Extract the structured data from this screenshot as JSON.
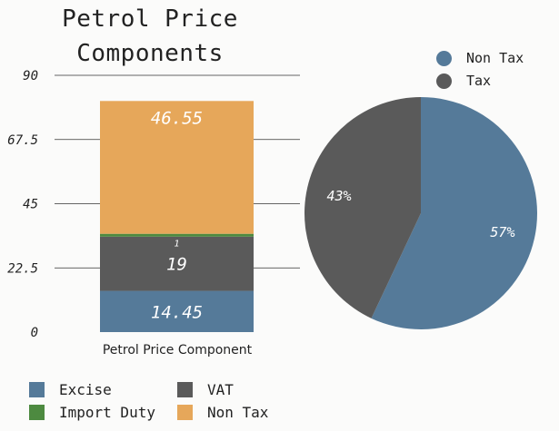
{
  "chart_data": [
    {
      "type": "bar",
      "stacked": true,
      "title": "Petrol Price Components",
      "categories": [
        "Petrol Price Component"
      ],
      "ylim": [
        0,
        90
      ],
      "yticks": [
        "0",
        "22.5",
        "45",
        "67.5",
        "90"
      ],
      "grid": true,
      "legend_position": "bottom",
      "series": [
        {
          "name": "Excise",
          "values": [
            14.45
          ],
          "label": "14.45",
          "color": "#557a99"
        },
        {
          "name": "VAT",
          "values": [
            19
          ],
          "label": "19",
          "color": "#5a5a5a"
        },
        {
          "name": "Import Duty",
          "values": [
            1
          ],
          "label": "1",
          "color": "#4d8a40"
        },
        {
          "name": "Non Tax",
          "values": [
            46.55
          ],
          "label": "46.55",
          "color": "#e6a75a"
        }
      ]
    },
    {
      "type": "pie",
      "legend_position": "top-right",
      "slices": [
        {
          "name": "Non Tax",
          "value": 57,
          "label": "57%",
          "color": "#557a99"
        },
        {
          "name": "Tax",
          "value": 43,
          "label": "43%",
          "color": "#5a5a5a"
        }
      ]
    }
  ]
}
